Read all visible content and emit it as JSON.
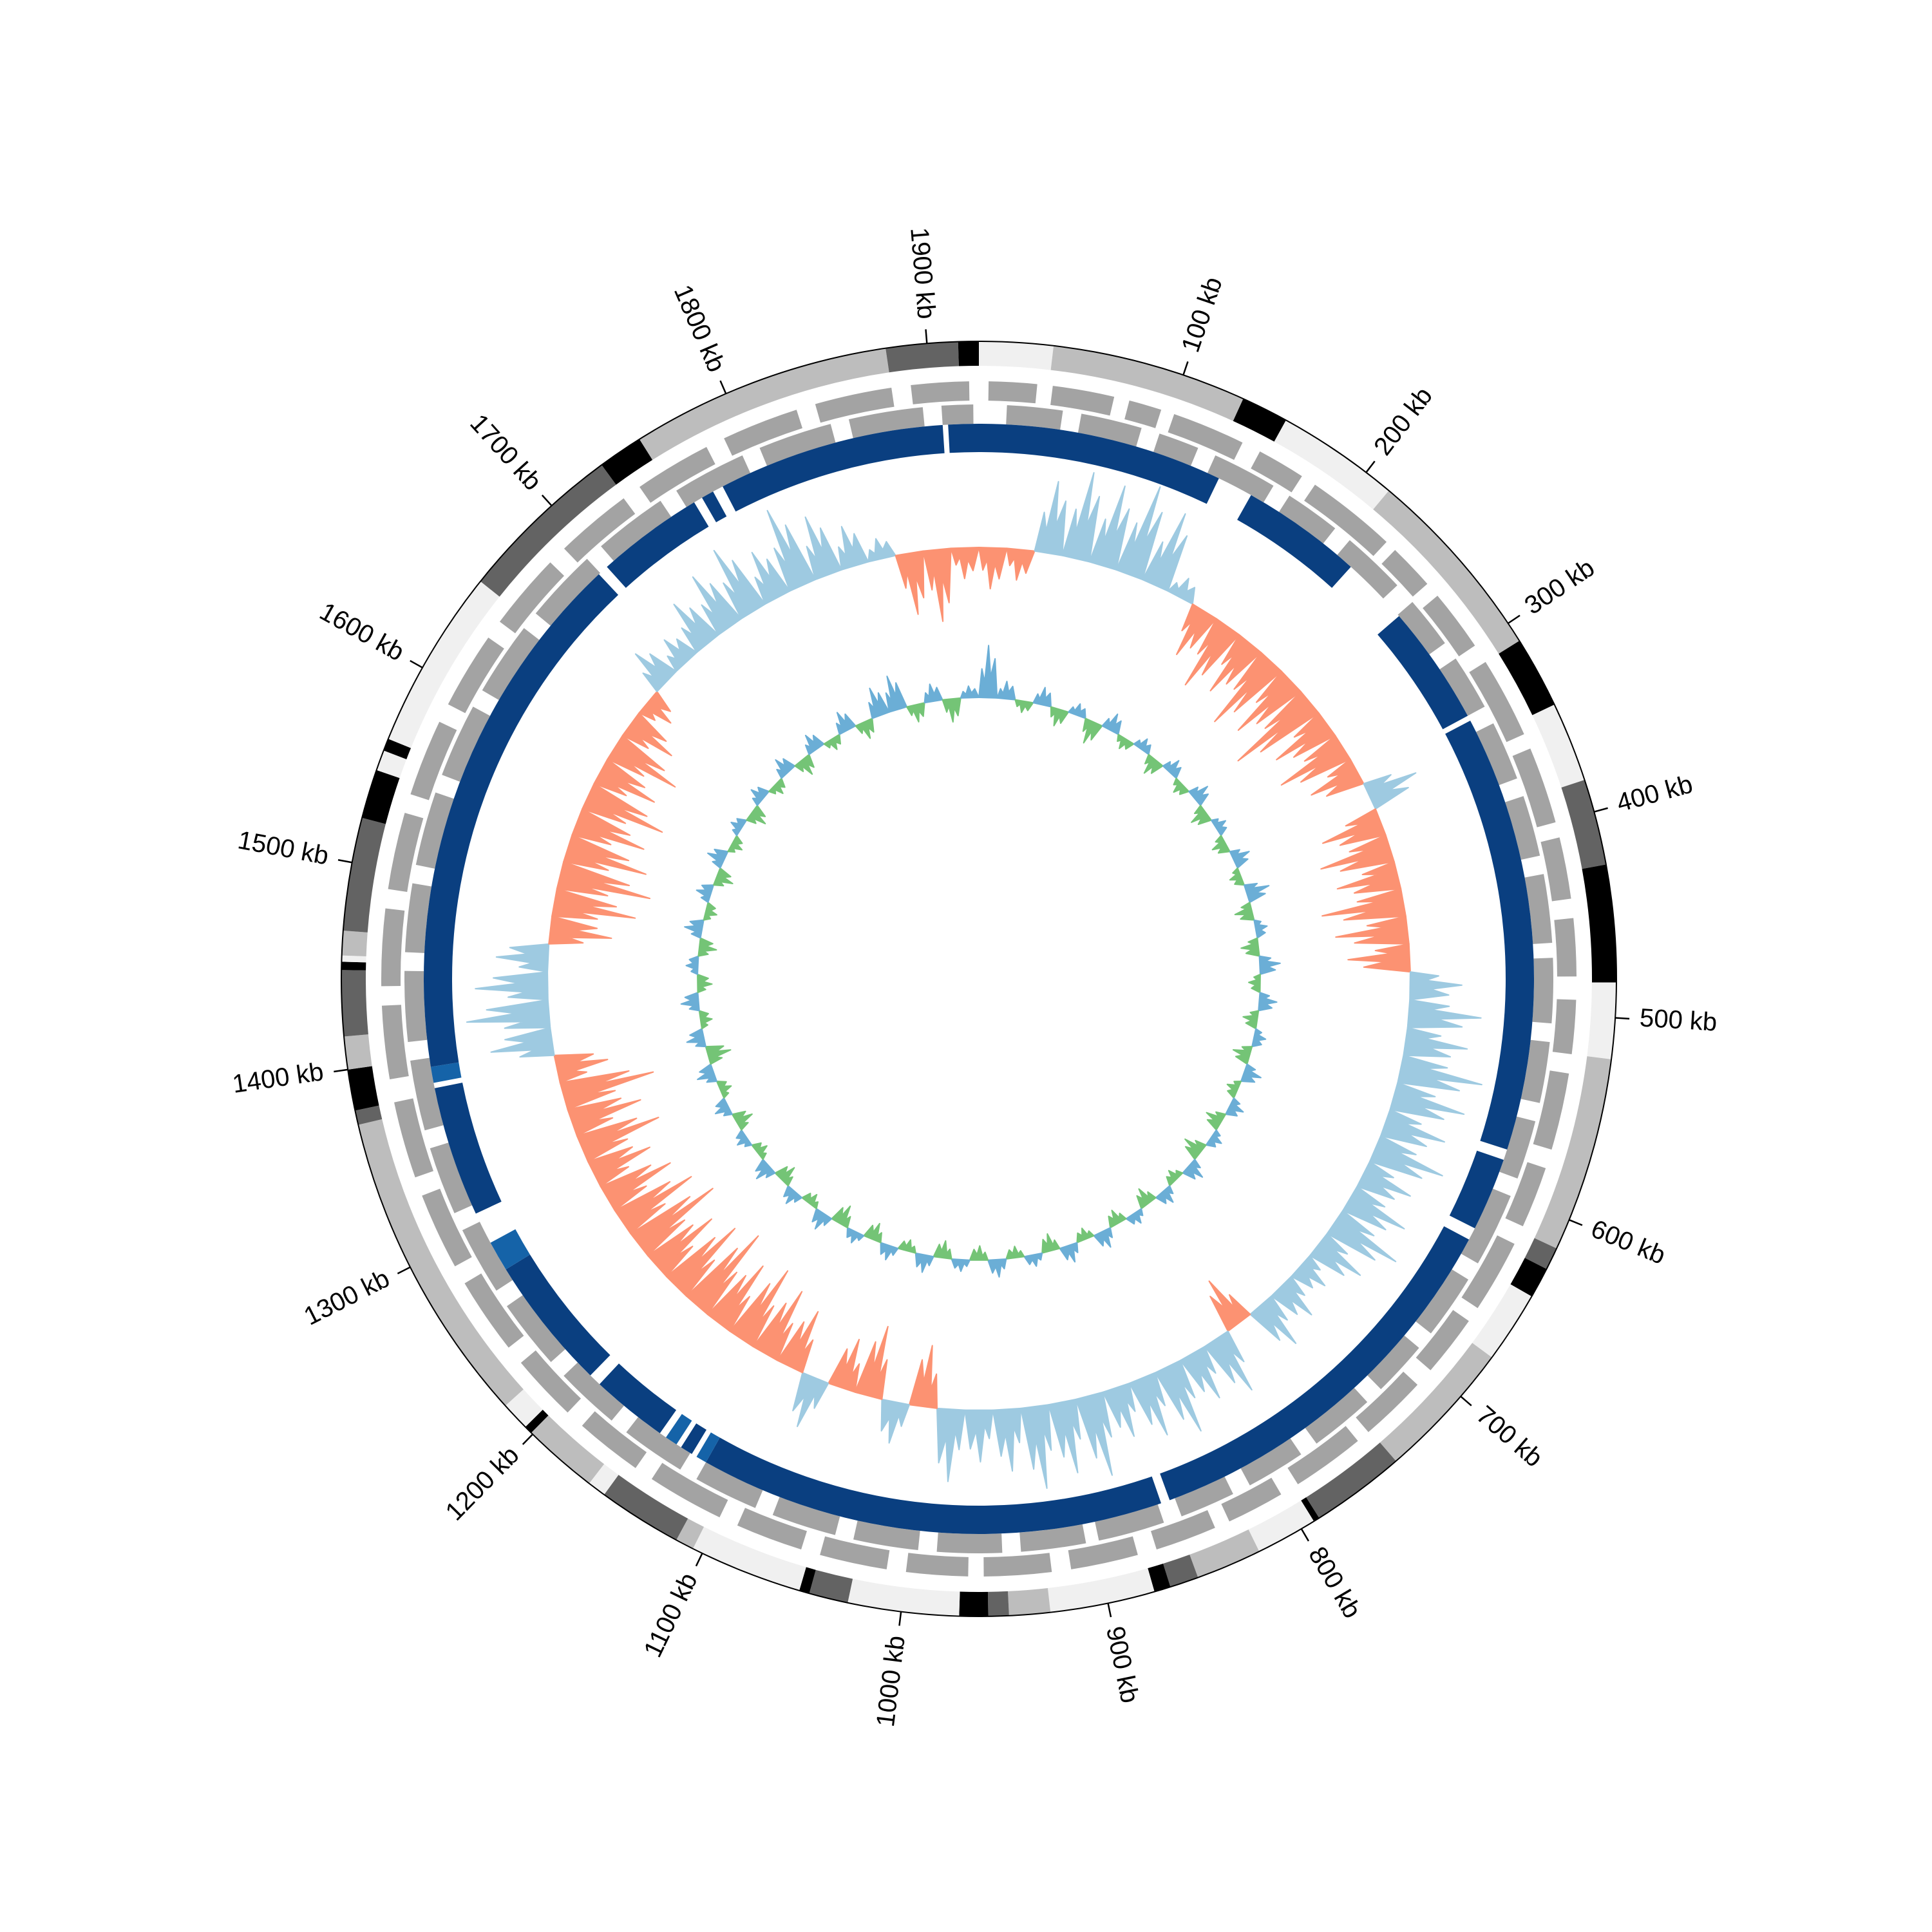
{
  "chart_data": {
    "type": "circular",
    "xlim": [
      0,
      1925
    ],
    "xticks": [
      {
        "value": 100,
        "label": "100 kb"
      },
      {
        "value": 200,
        "label": "200 kb"
      },
      {
        "value": 300,
        "label": "300 kb"
      },
      {
        "value": 400,
        "label": "400 kb"
      },
      {
        "value": 500,
        "label": "500 kb"
      },
      {
        "value": 600,
        "label": "600 kb"
      },
      {
        "value": 700,
        "label": "700 kb"
      },
      {
        "value": 800,
        "label": "800 kb"
      },
      {
        "value": 900,
        "label": "900 kb"
      },
      {
        "value": 1000,
        "label": "1000 kb"
      },
      {
        "value": 1100,
        "label": "1100 kb"
      },
      {
        "value": 1200,
        "label": "1200 kb"
      },
      {
        "value": 1300,
        "label": "1300 kb"
      },
      {
        "value": 1400,
        "label": "1400 kb"
      },
      {
        "value": 1500,
        "label": "1500 kb"
      },
      {
        "value": 1600,
        "label": "1600 kb"
      },
      {
        "value": 1700,
        "label": "1700 kb"
      },
      {
        "value": 1800,
        "label": "1800 kb"
      },
      {
        "value": 1900,
        "label": "1900 kb"
      }
    ],
    "bands": {
      "starts": [
        0,
        36,
        131,
        154,
        214,
        310,
        345,
        384,
        426,
        483,
        520,
        615,
        626,
        641,
        676,
        744,
        790,
        793,
        823,
        855,
        869,
        877,
        928,
        948,
        958,
        972,
        1026,
        1045,
        1050,
        1105,
        1114,
        1155,
        1164,
        1201,
        1205,
        1219,
        1373,
        1380,
        1400,
        1416,
        1448,
        1452,
        1455,
        1467,
        1522,
        1546,
        1556,
        1562,
        1650,
        1731,
        1753,
        1880,
        1915
      ],
      "colors": [
        "#f0f0f0",
        "#bdbdbd",
        "#000000",
        "#f0f0f0",
        "#bdbdbd",
        "#000000",
        "#f0f0f0",
        "#636363",
        "#000000",
        "#f0f0f0",
        "#bdbdbd",
        "#636363",
        "#000000",
        "#f0f0f0",
        "#bdbdbd",
        "#636363",
        "#000000",
        "#f0f0f0",
        "#bdbdbd",
        "#636363",
        "#000000",
        "#f0f0f0",
        "#bdbdbd",
        "#636363",
        "#000000",
        "#f0f0f0",
        "#636363",
        "#000000",
        "#f0f0f0",
        "#bdbdbd",
        "#636363",
        "#f0f0f0",
        "#bdbdbd",
        "#000000",
        "#f0f0f0",
        "#bdbdbd",
        "#636363",
        "#000000",
        "#bdbdbd",
        "#636363",
        "#000000",
        "#f0f0f0",
        "#bdbdbd",
        "#636363",
        "#000000",
        "#f0f0f0",
        "#000000",
        "#f0f0f0",
        "#636363",
        "#000000",
        "#bdbdbd",
        "#636363",
        "#000000"
      ]
    },
    "genes": {
      "color": "#a3a3a3",
      "forward": {
        "starts": [
          5,
          38,
          78,
          102,
          150,
          183,
          236,
          268,
          310,
          360,
          408,
          450,
          492,
          530,
          580,
          622,
          668,
          710,
          752,
          800,
          838,
          880,
          925,
          968,
          1010,
          1055,
          1100,
          1150,
          1195,
          1240,
          1290,
          1340,
          1392,
          1440,
          1490,
          1540,
          1590,
          1640,
          1690,
          1740,
          1790,
          1840,
          1890
        ],
        "ends": [
          30,
          70,
          95,
          140,
          175,
          230,
          260,
          300,
          352,
          400,
          440,
          480,
          520,
          570,
          612,
          660,
          700,
          745,
          790,
          830,
          870,
          915,
          960,
          1000,
          1045,
          1090,
          1140,
          1185,
          1230,
          1280,
          1330,
          1380,
          1430,
          1480,
          1530,
          1580,
          1630,
          1680,
          1730,
          1780,
          1830,
          1880,
          1920
        ]
      },
      "reverse": {
        "starts": [
          15,
          55,
          98,
          130,
          175,
          215,
          262,
          300,
          340,
          382,
          425,
          470,
          515,
          558,
          600,
          650,
          695,
          735,
          780,
          822,
          862,
          905,
          950,
          995,
          1040,
          1085,
          1130,
          1175,
          1220,
          1268,
          1315,
          1362,
          1410,
          1458,
          1505,
          1555,
          1605,
          1655,
          1705,
          1755,
          1805,
          1855,
          1905
        ],
        "ends": [
          45,
          88,
          120,
          165,
          205,
          250,
          290,
          330,
          372,
          415,
          462,
          505,
          548,
          590,
          640,
          685,
          725,
          770,
          812,
          852,
          898,
          940,
          985,
          1030,
          1075,
          1120,
          1165,
          1210,
          1258,
          1305,
          1352,
          1400,
          1448,
          1495,
          1545,
          1595,
          1645,
          1695,
          1745,
          1795,
          1845,
          1895,
          1922
        ]
      }
    },
    "regions": {
      "starts": [
        0,
        157,
        263,
        333,
        583,
        631,
        860,
        1120,
        1129,
        1139,
        1150,
        1200,
        1275,
        1310,
        1386,
        1395,
        1700,
        1765,
        1778,
        1908
      ],
      "ends": [
        137,
        225,
        330,
        577,
        624,
        855,
        1120,
        1126,
        1136,
        1146,
        1193,
        1275,
        1292,
        1383,
        1395,
        1694,
        1760,
        1772,
        1905,
        1925
      ],
      "colors": [
        "#0a3f80",
        "#0a3f80",
        "#0a3f80",
        "#0a3f80",
        "#0a3f80",
        "#0a3f80",
        "#0a3f80",
        "#1563a8",
        "#0a3f80",
        "#1563a8",
        "#0a3f80",
        "#0a3f80",
        "#1563a8",
        "#0a3f80",
        "#1563a8",
        "#0a3f80",
        "#0a3f80",
        "#0a3f80",
        "#0a3f80",
        "#0a3f80"
      ]
    },
    "gc_skew": {
      "ylim": [
        -1,
        1
      ],
      "positive_color": "#9ecae1",
      "negative_color": "#fc9272",
      "values": [
        -0.4,
        -0.3,
        0.7,
        0.85,
        0.8,
        0.9,
        0.75,
        0.2,
        -0.5,
        -0.7,
        -0.6,
        -0.8,
        -0.7,
        -0.9,
        -0.6,
        -0.7,
        -0.5,
        0.5,
        -0.6,
        -0.7,
        -0.6,
        -0.8,
        -0.7,
        -0.6,
        0.5,
        0.7,
        0.6,
        0.8,
        0.7,
        0.6,
        0.7,
        0.5,
        0.6,
        0.7,
        0.5,
        0.3,
        0.4,
        0.5,
        -0.5,
        0.6,
        0.5,
        0.7,
        0.6,
        0.5,
        0.8,
        0.7,
        0.8,
        0.6,
        0.5,
        0.7,
        -0.6,
        0.4,
        -0.7,
        -0.5,
        0.5,
        -0.6,
        -0.7,
        -0.8,
        -0.7,
        -0.9,
        -0.8,
        -0.7,
        -0.9,
        -0.8,
        -0.7,
        -0.6,
        -0.8,
        -0.7,
        -0.9,
        -0.5,
        0.6,
        0.8,
        0.7,
        0.5,
        -0.6,
        -0.8,
        -0.9,
        -0.8,
        -0.7,
        -0.8,
        -0.6,
        -0.7,
        -0.5,
        -0.3,
        0.4,
        0.3,
        0.5,
        0.6,
        0.7,
        0.5,
        0.8,
        0.6,
        0.4,
        0.2,
        -0.6,
        -0.7,
        -0.3
      ]
    },
    "gc_content": {
      "ylim": [
        -1,
        1
      ],
      "positive_color": "#6baed6",
      "negative_color": "#74c476",
      "values": [
        0.9,
        0.3,
        -0.2,
        0.3,
        -0.3,
        0.2,
        -0.4,
        0.3,
        -0.2,
        0.2,
        -0.3,
        0.25,
        -0.2,
        0.3,
        -0.3,
        0.2,
        -0.25,
        0.3,
        -0.2,
        0.4,
        -0.3,
        0.2,
        -0.3,
        0.35,
        -0.2,
        0.3,
        -0.25,
        0.2,
        -0.3,
        0.3,
        -0.2,
        0.25,
        -0.3,
        0.2,
        -0.35,
        0.3,
        -0.2,
        0.25,
        -0.3,
        0.2,
        -0.25,
        0.3,
        -0.2,
        0.3,
        -0.3,
        0.2,
        -0.2,
        0.3,
        -0.25,
        0.2,
        -0.3,
        0.3,
        -0.2,
        0.25,
        -0.3,
        0.2,
        -0.35,
        0.3,
        -0.2,
        0.25,
        -0.3,
        0.3,
        -0.2,
        0.2,
        -0.3,
        0.25,
        -0.2,
        0.3,
        -0.4,
        0.3,
        -0.2,
        0.3,
        -0.25,
        0.2,
        -0.3,
        0.3,
        -0.2,
        0.25,
        -0.3,
        0.3,
        -0.2,
        0.2,
        -0.3,
        0.25,
        -0.2,
        0.3,
        -0.3,
        0.3,
        -0.2,
        0.35,
        -0.3,
        0.5,
        0.6,
        -0.3,
        0.3,
        -0.4,
        0.2
      ]
    }
  }
}
